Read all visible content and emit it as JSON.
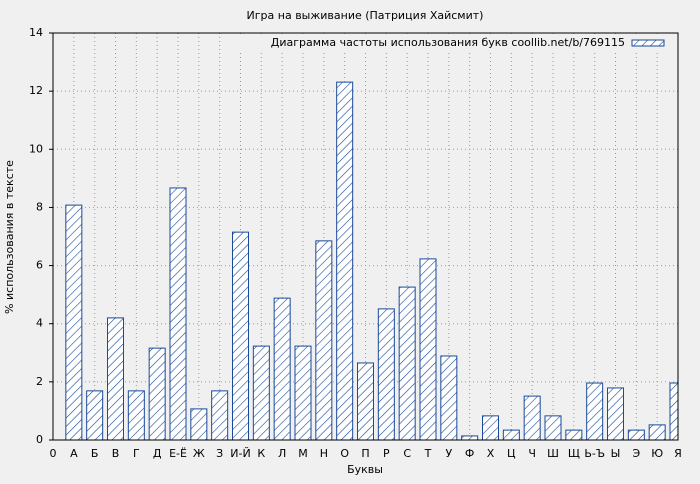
{
  "chart_data": {
    "type": "bar",
    "title": "Игра на выживание (Патриция Хайсмит)",
    "xlabel": "Буквы",
    "ylabel": "% использования в тексте",
    "categories": [
      "0",
      "А",
      "Б",
      "В",
      "Г",
      "Д",
      "Е-Ё",
      "Ж",
      "З",
      "И-Й",
      "К",
      "Л",
      "М",
      "Н",
      "О",
      "П",
      "Р",
      "С",
      "Т",
      "У",
      "Ф",
      "Х",
      "Ц",
      "Ч",
      "Ш",
      "Щ",
      "Ь-Ъ",
      "Ы",
      "Э",
      "Ю",
      "Я"
    ],
    "series": [
      {
        "name": "Диаграмма частоты использования букв coollib.net/b/769115",
        "color": "#1a4a9a",
        "values": [
          null,
          8.08,
          1.69,
          4.2,
          1.69,
          3.16,
          8.67,
          1.07,
          1.69,
          7.15,
          3.23,
          4.88,
          3.23,
          6.85,
          12.31,
          2.65,
          4.51,
          5.26,
          6.23,
          2.89,
          0.14,
          0.83,
          0.34,
          1.51,
          0.83,
          0.34,
          1.96,
          1.79,
          0.34,
          0.52,
          1.96
        ]
      }
    ],
    "ylim": [
      0,
      14
    ],
    "yticks": [
      0,
      2,
      4,
      6,
      8,
      10,
      12,
      14
    ],
    "grid": true,
    "legend": "upper right"
  }
}
